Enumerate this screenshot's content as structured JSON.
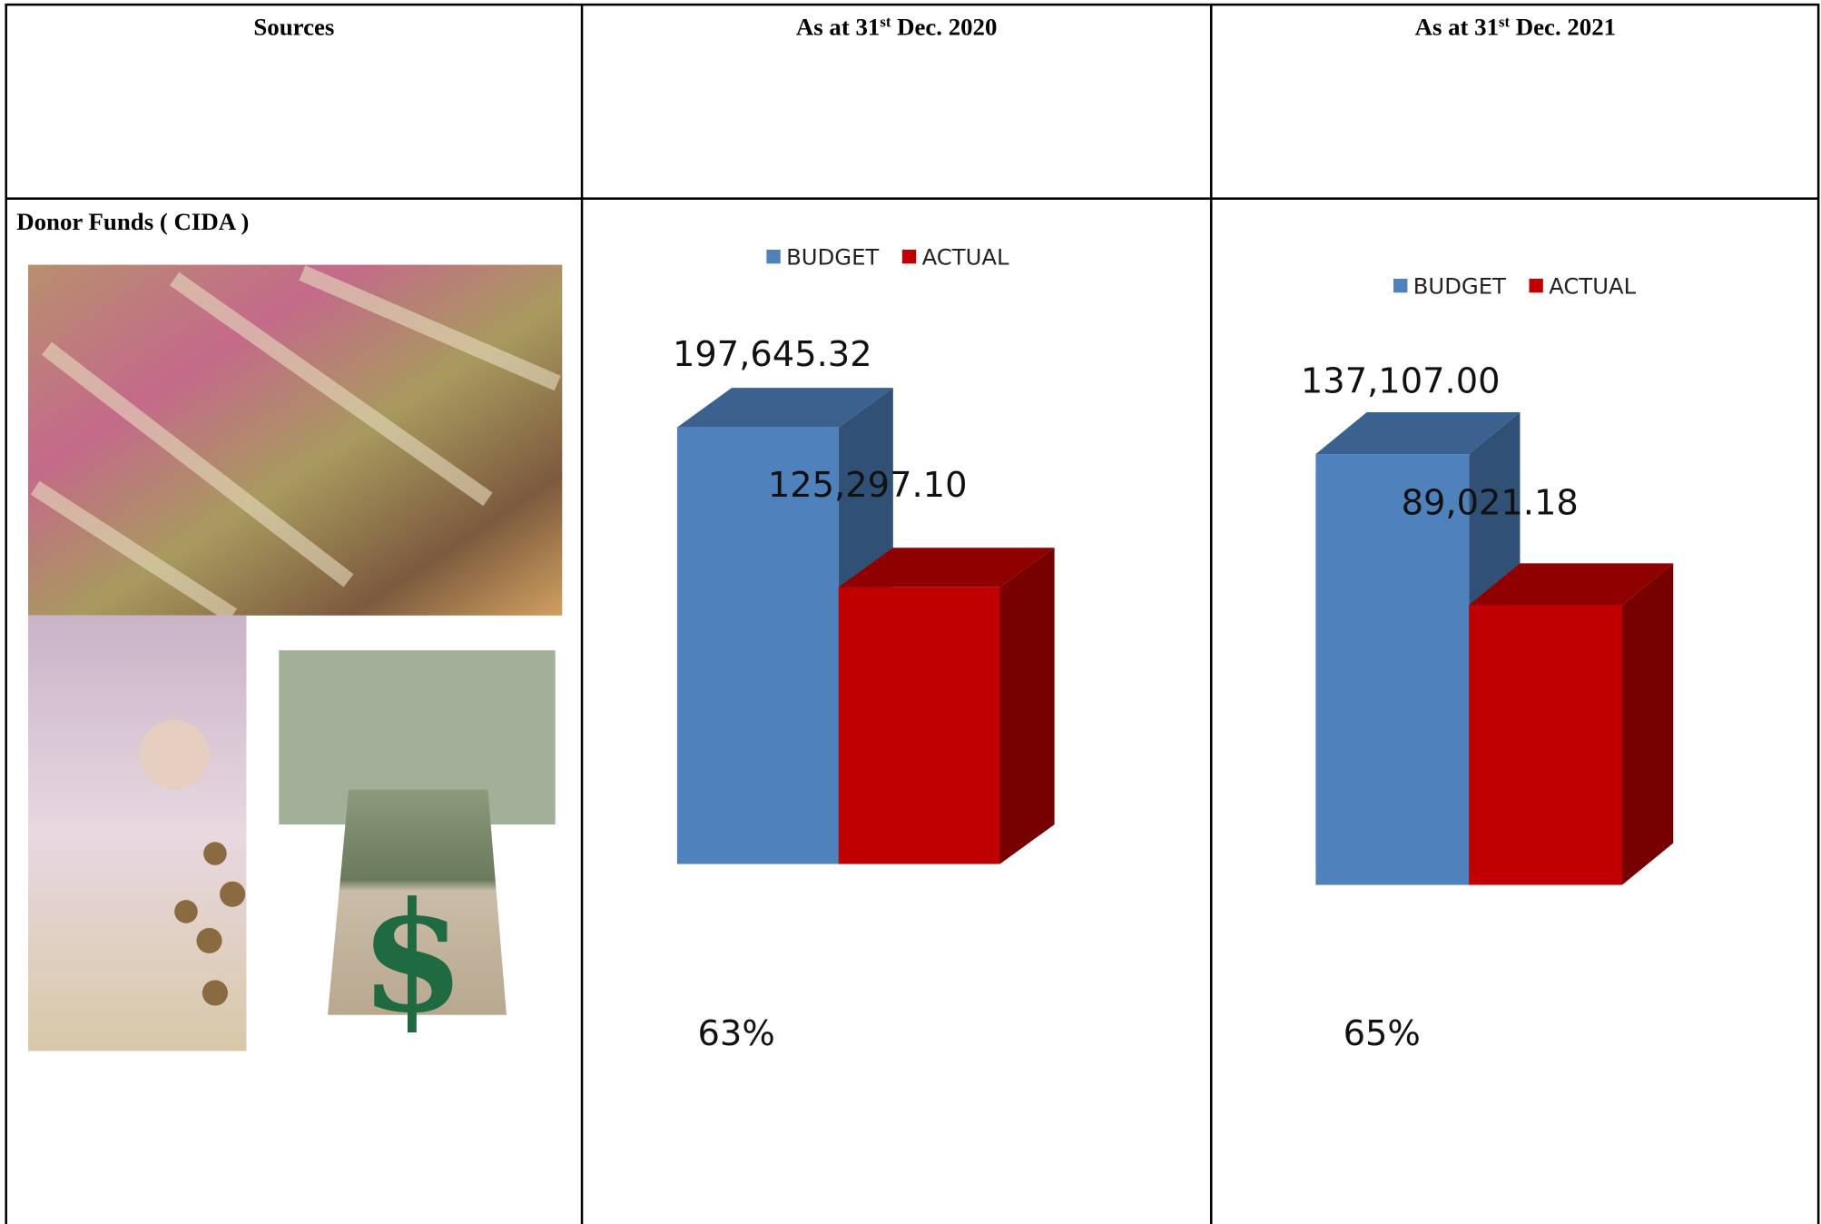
{
  "table": {
    "headers": [
      [
        "Sources"
      ],
      [
        "As at 31",
        "st",
        " Dec. 2020"
      ],
      [
        "As at 31",
        "st",
        " Dec. 2021"
      ]
    ],
    "rows": [
      [
        "Donor Funds ( CIDA )"
      ]
    ]
  },
  "chart_data": [
    {
      "type": "bar",
      "series": [
        {
          "name": "BUDGET",
          "color": "#4f81bd",
          "values": [
            197645.32
          ],
          "value_labels": [
            "197,645.32"
          ]
        },
        {
          "name": "ACTUAL",
          "color": "#c00000",
          "values": [
            125297.1
          ],
          "value_labels": [
            "125,297.10"
          ]
        }
      ],
      "annotation": "63%"
    },
    {
      "type": "bar",
      "series": [
        {
          "name": "BUDGET",
          "color": "#4f81bd",
          "values": [
            137107.0
          ],
          "value_labels": [
            "137,107.00"
          ]
        },
        {
          "name": "ACTUAL",
          "color": "#c00000",
          "values": [
            89021.18
          ],
          "value_labels": [
            "89,021.18"
          ]
        }
      ],
      "annotation": "65%"
    }
  ]
}
